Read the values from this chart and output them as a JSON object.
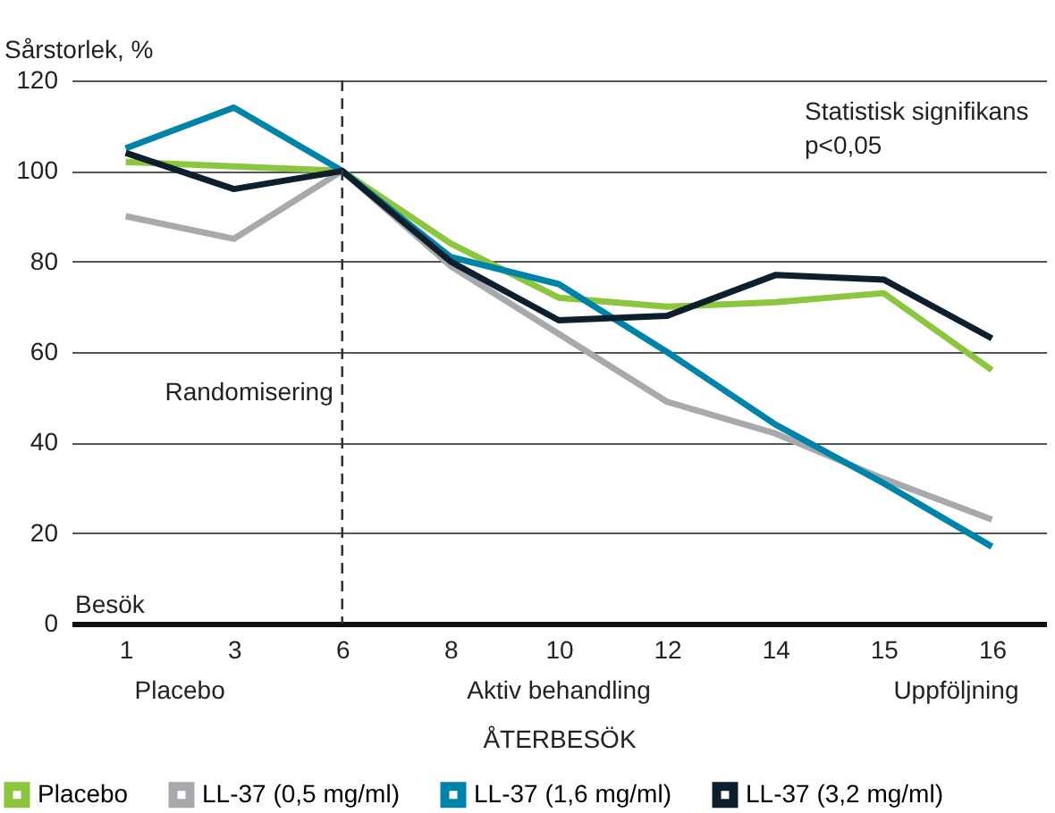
{
  "chart_data": {
    "type": "line",
    "ylabel": "Sårstorlek, %",
    "xlabel": "ÅTERBESÖK",
    "categories": [
      "1",
      "3",
      "6",
      "8",
      "10",
      "12",
      "14",
      "15",
      "16"
    ],
    "series": [
      {
        "name": "Placebo",
        "color": "#8cc63f",
        "values": [
          102,
          101,
          100,
          84,
          72,
          70,
          71,
          73,
          56
        ]
      },
      {
        "name": "LL-37 (0,5 mg/ml)",
        "color": "#a7a9ac",
        "values": [
          90,
          85,
          100,
          79,
          64,
          49,
          42,
          32,
          23
        ]
      },
      {
        "name": "LL-37 (1,6 mg/ml)",
        "color": "#0083a9",
        "values": [
          105,
          114,
          100,
          81,
          75,
          60,
          44,
          31,
          17
        ]
      },
      {
        "name": "LL-37 (3,2 mg/ml)",
        "color": "#0d1e2d",
        "values": [
          104,
          96,
          100,
          80,
          67,
          68,
          77,
          76,
          63
        ]
      }
    ],
    "ylim": [
      0,
      120
    ],
    "yticks": [
      0,
      20,
      40,
      60,
      80,
      100,
      120
    ],
    "grid": "y",
    "legend": "bottom",
    "marker": "none",
    "line_style": "solid",
    "ref_lines": [
      {
        "axis": "x",
        "value": "6",
        "label": "Randomisering",
        "color": "#333333",
        "line_style": "dashed"
      }
    ],
    "annotations": [
      "Statistisk signifikans\np<0,05",
      "Besök",
      "Placebo",
      "Aktiv behandling",
      "Uppföljning"
    ]
  }
}
